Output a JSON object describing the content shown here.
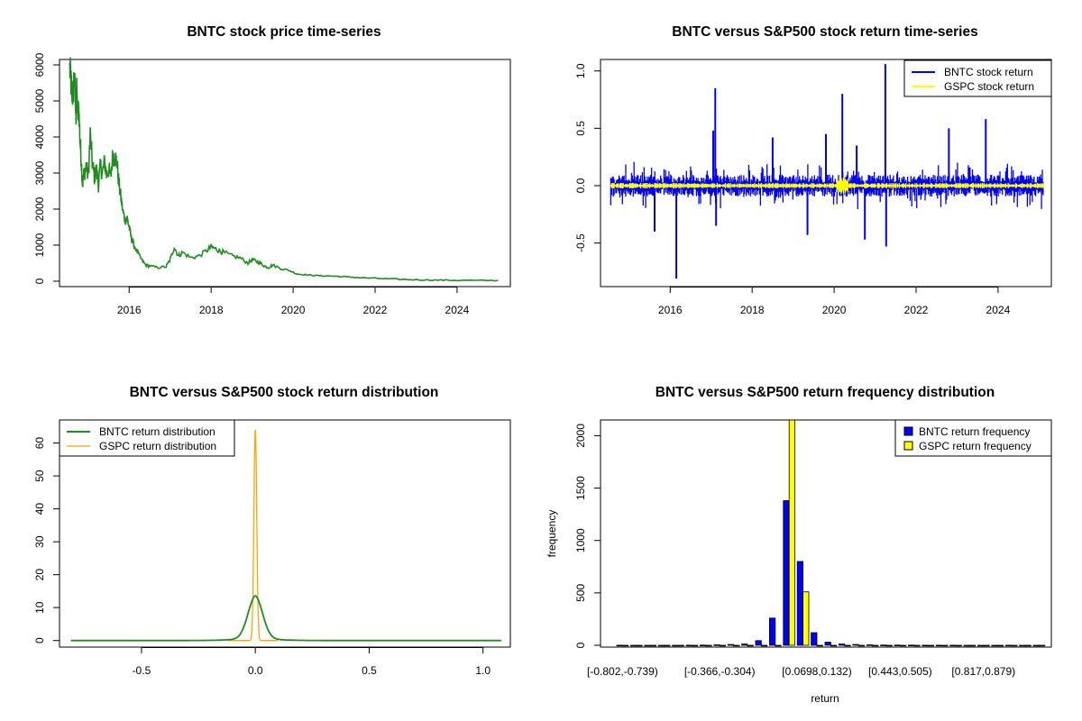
{
  "chart_data": [
    {
      "id": "price",
      "type": "line",
      "title": "BNTC stock price time-series",
      "xlabel": "",
      "ylabel": "",
      "xlim": [
        2014.3,
        2025.3
      ],
      "ylim": [
        -150,
        6150
      ],
      "xticks": [
        2016,
        2018,
        2020,
        2022,
        2024
      ],
      "xtick_labels": [
        "2016",
        "2018",
        "2020",
        "2022",
        "2024"
      ],
      "yticks": [
        0,
        1000,
        2000,
        3000,
        4000,
        5000,
        6000
      ],
      "ytick_labels": [
        "0",
        "1000",
        "2000",
        "3000",
        "4000",
        "5000",
        "6000"
      ],
      "series": [
        {
          "name": "BNTC price",
          "color": "#228B22",
          "x": [
            2014.55,
            2014.58,
            2014.6,
            2014.63,
            2014.66,
            2014.7,
            2014.72,
            2014.75,
            2014.77,
            2014.8,
            2014.83,
            2014.86,
            2014.9,
            2014.95,
            2015.0,
            2015.05,
            2015.1,
            2015.15,
            2015.2,
            2015.25,
            2015.3,
            2015.35,
            2015.4,
            2015.45,
            2015.5,
            2015.55,
            2015.6,
            2015.65,
            2015.7,
            2015.75,
            2015.8,
            2015.85,
            2015.9,
            2015.95,
            2016.0,
            2016.05,
            2016.1,
            2016.2,
            2016.3,
            2016.4,
            2016.5,
            2016.7,
            2016.9,
            2017.0,
            2017.1,
            2017.2,
            2017.3,
            2017.5,
            2017.7,
            2017.9,
            2018.0,
            2018.1,
            2018.2,
            2018.3,
            2018.5,
            2018.7,
            2018.9,
            2019.0,
            2019.1,
            2019.2,
            2019.3,
            2019.4,
            2019.5,
            2019.7,
            2019.9,
            2020.1,
            2020.3,
            2020.5,
            2020.7,
            2021.0,
            2021.3,
            2021.6,
            2022.0,
            2022.4,
            2022.8,
            2023.2,
            2023.6,
            2024.0,
            2024.5,
            2025.0
          ],
          "y": [
            5900,
            5500,
            5300,
            5100,
            5800,
            4500,
            5200,
            4600,
            4800,
            3900,
            3400,
            2700,
            3000,
            3200,
            2900,
            4050,
            3300,
            2900,
            3100,
            2700,
            3200,
            3000,
            3300,
            2950,
            3100,
            2900,
            3500,
            3450,
            3300,
            2700,
            2300,
            1900,
            1700,
            1750,
            1500,
            1200,
            1050,
            800,
            600,
            450,
            420,
            380,
            400,
            600,
            950,
            700,
            800,
            650,
            700,
            850,
            950,
            900,
            850,
            800,
            700,
            650,
            500,
            600,
            550,
            500,
            420,
            380,
            450,
            350,
            300,
            200,
            180,
            160,
            150,
            140,
            120,
            100,
            80,
            60,
            45,
            35,
            30,
            25,
            20,
            20
          ]
        }
      ]
    },
    {
      "id": "returns",
      "type": "line",
      "title": "BNTC versus S&P500 stock return time-series",
      "xlabel": "",
      "ylabel": "",
      "xlim": [
        2014.3,
        2025.3
      ],
      "ylim": [
        -0.88,
        1.1
      ],
      "xticks": [
        2016,
        2018,
        2020,
        2022,
        2024
      ],
      "xtick_labels": [
        "2016",
        "2018",
        "2020",
        "2022",
        "2024"
      ],
      "yticks": [
        -0.5,
        0,
        0.5,
        1.0
      ],
      "ytick_labels": [
        "-0.5",
        "0.0",
        "0.5",
        "1.0"
      ],
      "legend": "top-right",
      "series": [
        {
          "name": "BNTC stock return",
          "color": "#0000FF",
          "band": [
            -0.08,
            0.08
          ]
        },
        {
          "name": "GSPC stock return",
          "color": "#FFFF00",
          "band": [
            -0.02,
            0.02
          ]
        }
      ],
      "spikes": [
        {
          "x": 2015.62,
          "y": -0.4
        },
        {
          "x": 2016.15,
          "y": -0.81
        },
        {
          "x": 2017.05,
          "y": 0.48
        },
        {
          "x": 2017.1,
          "y": 0.85
        },
        {
          "x": 2017.12,
          "y": -0.35
        },
        {
          "x": 2018.5,
          "y": 0.42
        },
        {
          "x": 2019.35,
          "y": -0.43
        },
        {
          "x": 2019.8,
          "y": 0.45
        },
        {
          "x": 2020.2,
          "y": 0.8
        },
        {
          "x": 2020.55,
          "y": 0.35
        },
        {
          "x": 2020.75,
          "y": -0.47
        },
        {
          "x": 2021.25,
          "y": 1.06
        },
        {
          "x": 2021.27,
          "y": -0.53
        },
        {
          "x": 2022.8,
          "y": 0.5
        },
        {
          "x": 2023.7,
          "y": 0.58
        }
      ]
    },
    {
      "id": "density",
      "type": "line",
      "title": "BNTC versus S&P500 stock return distribution",
      "xlabel": "",
      "ylabel": "",
      "xlim": [
        -0.86,
        1.12
      ],
      "ylim": [
        -2,
        67
      ],
      "xticks": [
        -0.5,
        0.0,
        0.5,
        1.0
      ],
      "xtick_labels": [
        "-0.5",
        "0.0",
        "0.5",
        "1.0"
      ],
      "yticks": [
        0,
        10,
        20,
        30,
        40,
        50,
        60
      ],
      "ytick_labels": [
        "0",
        "10",
        "20",
        "30",
        "40",
        "50",
        "60"
      ],
      "legend": "top-left",
      "series": [
        {
          "name": "BNTC return distribution",
          "color": "#228B22",
          "peak": 12,
          "sigma": 0.032,
          "center": 0.0,
          "range": [
            -0.81,
            1.08
          ]
        },
        {
          "name": "GSPC return distribution",
          "color": "#FFA500",
          "peak": 64,
          "sigma": 0.0062,
          "center": 0.0,
          "range": [
            -0.12,
            0.1
          ]
        }
      ]
    },
    {
      "id": "freq",
      "type": "bar",
      "title": "BNTC versus S&P500 return frequency distribution",
      "xlabel": "return",
      "ylabel": "frequency",
      "ylim": [
        0,
        2150
      ],
      "yticks": [
        0,
        500,
        1000,
        1500,
        2000
      ],
      "ytick_labels": [
        "0",
        "500",
        "1000",
        "1500",
        "2000"
      ],
      "legend": "top-right",
      "xtick_labels": [
        "[-0.802,-0.739)",
        "[-0.366,-0.304)",
        "[0.0698,0.132)",
        "[0.443,0.505)",
        "[0.817,0.879)"
      ],
      "xtick_bins": [
        0,
        7,
        14,
        20,
        26
      ],
      "categories_count": 31,
      "series": [
        {
          "name": "BNTC return frequency",
          "color": "#0000FF",
          "values": [
            1,
            0,
            0,
            0,
            0,
            1,
            2,
            4,
            8,
            12,
            45,
            260,
            1380,
            800,
            120,
            30,
            12,
            8,
            4,
            3,
            2,
            2,
            1,
            1,
            1,
            0,
            0,
            0,
            1,
            0,
            0
          ]
        },
        {
          "name": "GSPC return frequency",
          "color": "#FFFF00",
          "values": [
            0,
            0,
            0,
            0,
            0,
            0,
            0,
            0,
            0,
            0,
            0,
            0,
            2150,
            510,
            0,
            0,
            0,
            0,
            0,
            0,
            0,
            0,
            0,
            0,
            0,
            0,
            0,
            0,
            0,
            0,
            0
          ]
        }
      ]
    }
  ]
}
